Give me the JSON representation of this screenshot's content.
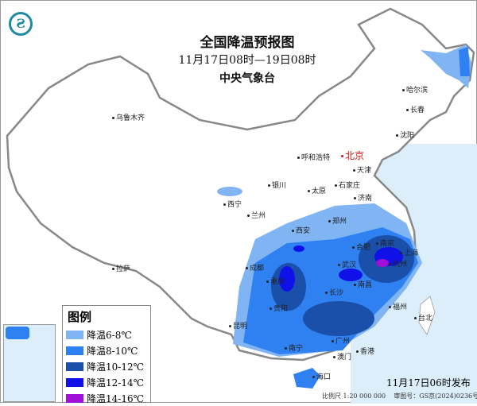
{
  "header": {
    "title": "全国降温预报图",
    "period": "11月17日08时—19日08时",
    "agency": "中央气象台",
    "logo": "cma-logo"
  },
  "legend": {
    "title": "图例",
    "items": [
      {
        "label": "降温6-8℃",
        "color": "#80b4f2"
      },
      {
        "label": "降温8-10℃",
        "color": "#2f80f0"
      },
      {
        "label": "降温10-12℃",
        "color": "#1a4faa"
      },
      {
        "label": "降温12-14℃",
        "color": "#1010e8"
      },
      {
        "label": "降温14-16℃",
        "color": "#a010d8"
      }
    ]
  },
  "cities": {
    "beijing": "北京",
    "urumqi": "乌鲁木齐",
    "harbin": "哈尔滨",
    "changchun": "长春",
    "shenyang": "沈阳",
    "hohhot": "呼和浩特",
    "tianjin": "天津",
    "yinchuan": "银川",
    "taiyuan": "太原",
    "shijiazhuang": "石家庄",
    "jinan": "济南",
    "xining": "西宁",
    "lanzhou": "兰州",
    "zhengzhou": "郑州",
    "xian": "西安",
    "hefei": "合肥",
    "nanjing": "南京",
    "shanghai": "上海",
    "lhasa": "拉萨",
    "chengdu": "成都",
    "wuhan": "武汉",
    "hangzhou": "杭州",
    "chongqing": "重庆",
    "changsha": "长沙",
    "nanchang": "南昌",
    "guiyang": "贵阳",
    "fuzhou": "福州",
    "taipei": "台北",
    "kunming": "昆明",
    "nanning": "南宁",
    "guangzhou": "广州",
    "hongkong": "香港",
    "macau": "澳门",
    "haikou": "海口"
  },
  "footer": {
    "issued": "11月17日06时发布",
    "scale": "比例尺 1:20 000 000",
    "map_no": "审图号：GS京(2024)0236号"
  }
}
